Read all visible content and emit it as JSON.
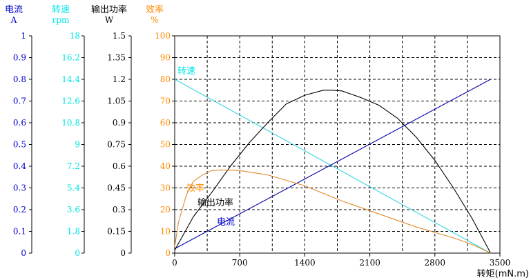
{
  "chart_data": {
    "type": "line",
    "x": {
      "label": "转矩(mN.m)",
      "range": [
        0,
        3500
      ],
      "ticks": [
        "0",
        "700",
        "1400",
        "2100",
        "2800",
        "3500"
      ]
    },
    "grid": true,
    "axes": [
      {
        "key": "current",
        "title": "电流",
        "unit": "A",
        "color": "#0000cc",
        "titleColor": "#0000cc",
        "tickColor": "#0000cc",
        "range": [
          0,
          1
        ],
        "ticks": [
          "0",
          "0.1",
          "0.2",
          "0.3",
          "0.4",
          "0.5",
          "0.6",
          "0.7",
          "0.8",
          "0.9",
          "1"
        ]
      },
      {
        "key": "speed",
        "title": "转速",
        "unit": "rpm",
        "color": "#00e5e5",
        "titleColor": "#00e5e5",
        "tickColor": "#00e5e5",
        "range": [
          0,
          18
        ],
        "ticks": [
          "0",
          "1.8",
          "3.6",
          "5.4",
          "7.2",
          "9",
          "10.8",
          "12.6",
          "14.4",
          "16.2",
          "18"
        ]
      },
      {
        "key": "power",
        "title": "输出功率",
        "unit": "W",
        "color": "#000000",
        "titleColor": "#000000",
        "tickColor": "#000000",
        "range": [
          0,
          1.5
        ],
        "ticks": [
          "0",
          "0.15",
          "0.3",
          "0.45",
          "0.6",
          "0.75",
          "0.9",
          "1.05",
          "1.2",
          "1.35",
          "1.5"
        ]
      },
      {
        "key": "efficiency",
        "title": "效率",
        "unit": "%",
        "color": "#ff8c00",
        "titleColor": "#ff8c00",
        "tickColor": "#ff8c00",
        "range": [
          0,
          100
        ],
        "ticks": [
          "0",
          "10",
          "20",
          "30",
          "40",
          "50",
          "60",
          "70",
          "80",
          "90",
          "100"
        ]
      }
    ],
    "series": [
      {
        "name": "转速",
        "axis": "speed",
        "color": "#33d6e0",
        "x": [
          0,
          3400
        ],
        "y": [
          14.4,
          0
        ]
      },
      {
        "name": "电流",
        "axis": "current",
        "color": "#0000aa",
        "x": [
          0,
          3400
        ],
        "y": [
          0.02,
          0.8
        ]
      },
      {
        "name": "输出功率",
        "axis": "power",
        "color": "#000000",
        "x": [
          0,
          200,
          400,
          600,
          800,
          1000,
          1200,
          1400,
          1600,
          1700,
          1800,
          2000,
          2200,
          2400,
          2600,
          2800,
          3000,
          3200,
          3400
        ],
        "y": [
          0.02,
          0.25,
          0.42,
          0.6,
          0.76,
          0.9,
          1.03,
          1.09,
          1.125,
          1.125,
          1.12,
          1.075,
          1.02,
          0.93,
          0.8,
          0.64,
          0.45,
          0.24,
          0
        ]
      },
      {
        "name": "效率",
        "axis": "efficiency",
        "color": "#e08a2c",
        "x": [
          0,
          40,
          80,
          120,
          160,
          200,
          300,
          400,
          500,
          700,
          1000,
          1400,
          1800,
          2200,
          2600,
          3000,
          3200,
          3400
        ],
        "y": [
          3,
          14,
          20,
          26,
          30,
          33,
          36,
          38,
          38.3,
          38,
          36,
          31,
          24,
          18,
          12,
          7,
          4,
          0
        ]
      }
    ],
    "curve_labels": [
      {
        "text": "转速",
        "color": "#00e5e5",
        "series": "转速"
      },
      {
        "text": "效率",
        "color": "#ff8c00",
        "series": "效率"
      },
      {
        "text": "输出功率",
        "color": "#000000",
        "series": "输出功率"
      },
      {
        "text": "电流",
        "color": "#0000cc",
        "series": "电流"
      }
    ]
  }
}
